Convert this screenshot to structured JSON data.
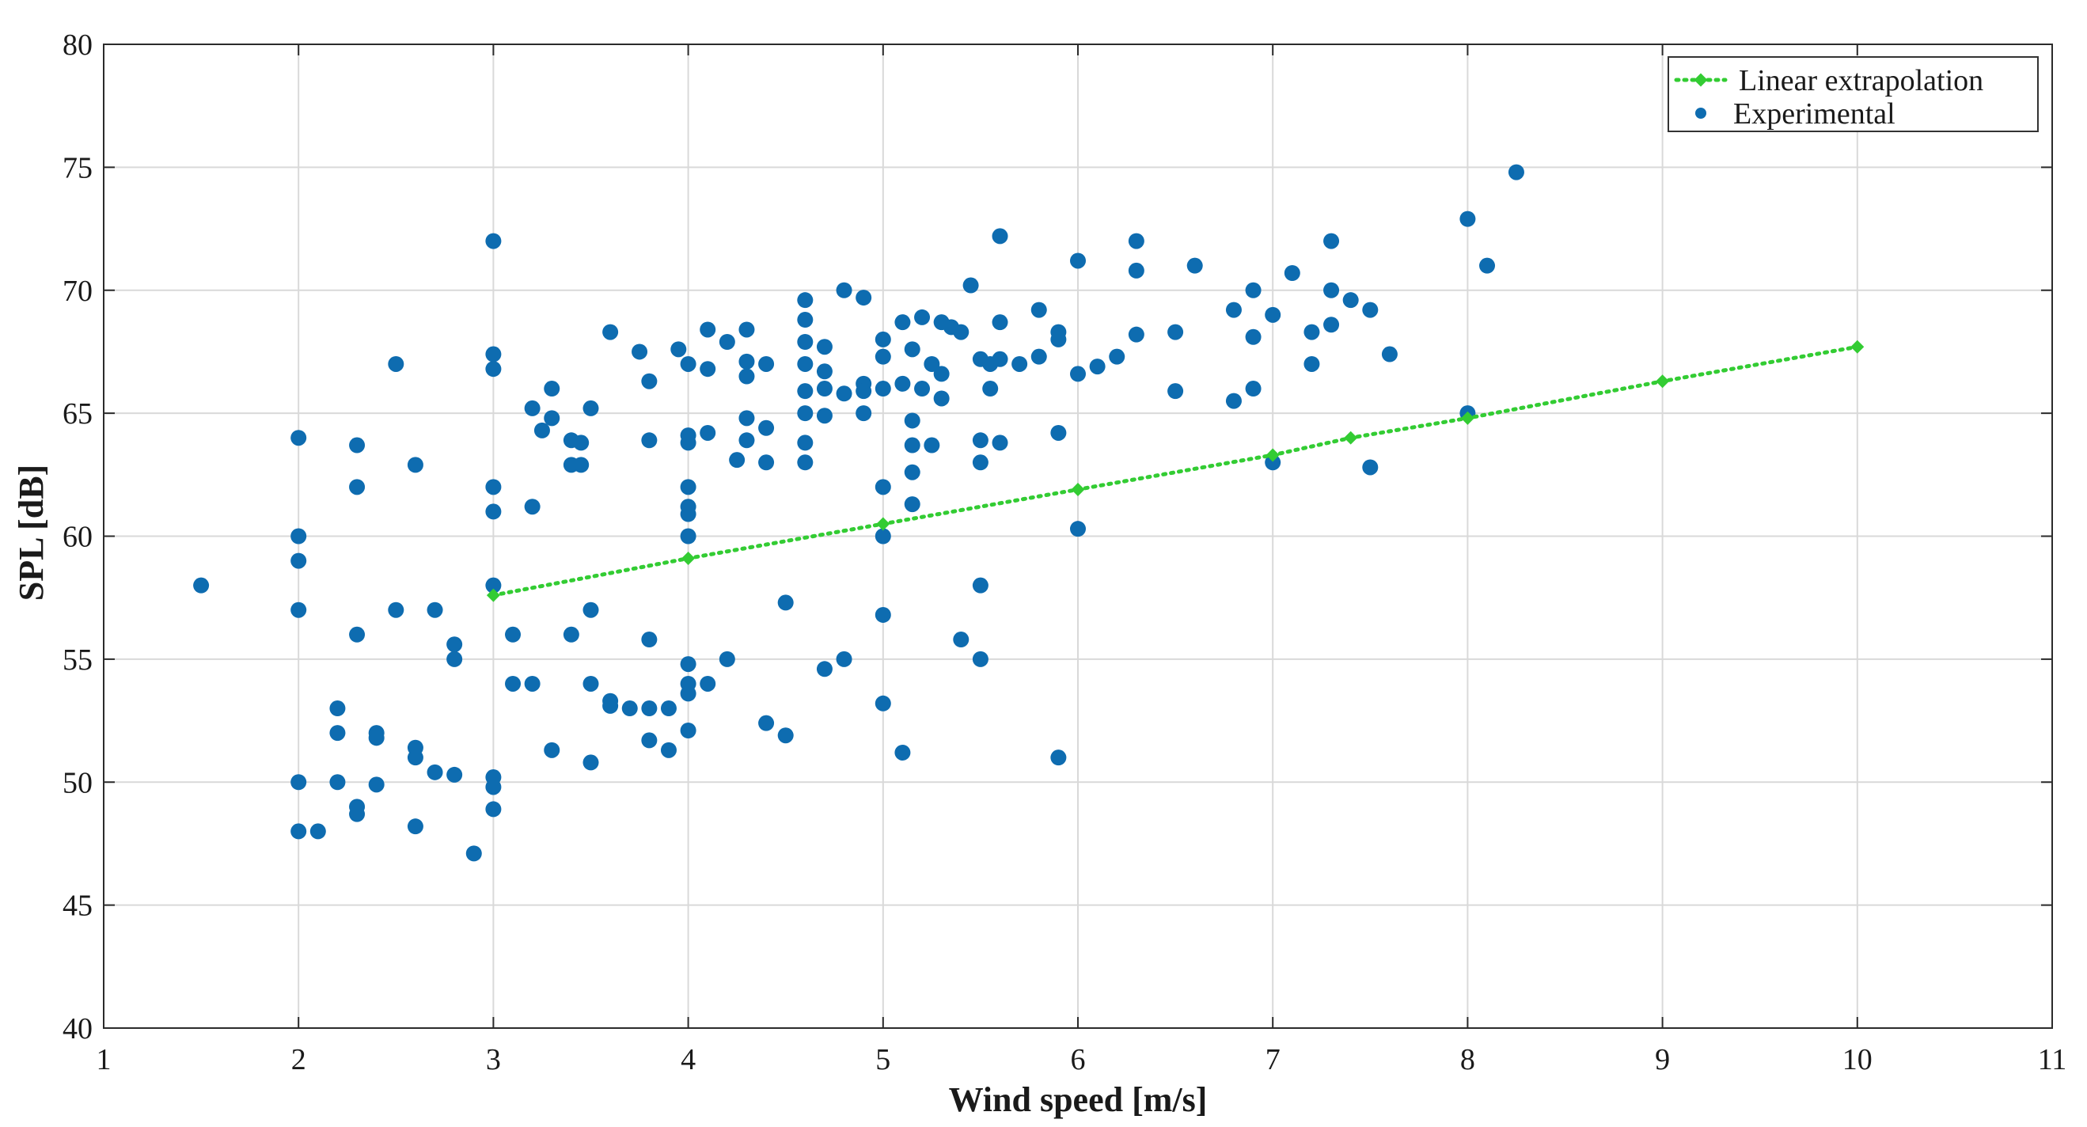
{
  "chart_data": {
    "type": "scatter",
    "title": "",
    "xlabel": "Wind speed [m/s]",
    "ylabel": "SPL [dB]",
    "xlim": [
      1,
      11
    ],
    "ylim": [
      40,
      80
    ],
    "xticks": [
      1,
      2,
      3,
      4,
      5,
      6,
      7,
      8,
      9,
      10,
      11
    ],
    "yticks": [
      40,
      45,
      50,
      55,
      60,
      65,
      70,
      75,
      80
    ],
    "grid": true,
    "legend_position": "top-right",
    "series": [
      {
        "name": "Linear extrapolation",
        "style": "dotted line with diamond markers",
        "color": "#33cc33",
        "points": [
          [
            3,
            57.6
          ],
          [
            4,
            59.1
          ],
          [
            5,
            60.5
          ],
          [
            6,
            61.9
          ],
          [
            7,
            63.3
          ],
          [
            7.4,
            64.0
          ],
          [
            8,
            64.8
          ],
          [
            9,
            66.3
          ],
          [
            10,
            67.7
          ]
        ]
      },
      {
        "name": "Experimental",
        "style": "filled circles",
        "color": "#0e6cb0",
        "points": [
          [
            1.5,
            58.0
          ],
          [
            2.0,
            64.0
          ],
          [
            2.0,
            60.0
          ],
          [
            2.0,
            59.0
          ],
          [
            2.0,
            57.0
          ],
          [
            2.0,
            50.0
          ],
          [
            2.0,
            48.0
          ],
          [
            2.1,
            48.0
          ],
          [
            2.2,
            53.0
          ],
          [
            2.2,
            52.0
          ],
          [
            2.2,
            50.0
          ],
          [
            2.3,
            63.7
          ],
          [
            2.3,
            62.0
          ],
          [
            2.3,
            56.0
          ],
          [
            2.3,
            49.0
          ],
          [
            2.3,
            48.7
          ],
          [
            2.4,
            52.0
          ],
          [
            2.4,
            51.8
          ],
          [
            2.4,
            49.9
          ],
          [
            2.5,
            67.0
          ],
          [
            2.5,
            57.0
          ],
          [
            2.6,
            62.9
          ],
          [
            2.6,
            51.4
          ],
          [
            2.6,
            51.0
          ],
          [
            2.6,
            48.2
          ],
          [
            2.7,
            57.0
          ],
          [
            2.7,
            50.4
          ],
          [
            2.8,
            55.6
          ],
          [
            2.8,
            55.0
          ],
          [
            2.8,
            50.3
          ],
          [
            2.9,
            47.1
          ],
          [
            3.0,
            72.0
          ],
          [
            3.0,
            67.4
          ],
          [
            3.0,
            66.8
          ],
          [
            3.0,
            62.0
          ],
          [
            3.0,
            61.0
          ],
          [
            3.0,
            58.0
          ],
          [
            3.0,
            50.2
          ],
          [
            3.0,
            49.8
          ],
          [
            3.0,
            48.9
          ],
          [
            3.1,
            56.0
          ],
          [
            3.1,
            54.0
          ],
          [
            3.2,
            65.2
          ],
          [
            3.2,
            61.2
          ],
          [
            3.2,
            54.0
          ],
          [
            3.25,
            64.3
          ],
          [
            3.3,
            66.0
          ],
          [
            3.3,
            64.8
          ],
          [
            3.3,
            51.3
          ],
          [
            3.4,
            63.9
          ],
          [
            3.4,
            62.9
          ],
          [
            3.4,
            56.0
          ],
          [
            3.45,
            63.8
          ],
          [
            3.45,
            62.9
          ],
          [
            3.5,
            65.2
          ],
          [
            3.5,
            57.0
          ],
          [
            3.5,
            54.0
          ],
          [
            3.5,
            50.8
          ],
          [
            3.6,
            68.3
          ],
          [
            3.6,
            53.3
          ],
          [
            3.6,
            53.1
          ],
          [
            3.7,
            53.0
          ],
          [
            3.75,
            67.5
          ],
          [
            3.8,
            66.3
          ],
          [
            3.8,
            63.9
          ],
          [
            3.8,
            55.8
          ],
          [
            3.8,
            53.0
          ],
          [
            3.8,
            51.7
          ],
          [
            3.9,
            53.0
          ],
          [
            3.9,
            51.3
          ],
          [
            3.95,
            67.6
          ],
          [
            4.0,
            67.0
          ],
          [
            4.0,
            64.1
          ],
          [
            4.0,
            63.8
          ],
          [
            4.0,
            62.0
          ],
          [
            4.0,
            61.2
          ],
          [
            4.0,
            60.9
          ],
          [
            4.0,
            60.0
          ],
          [
            4.0,
            54.8
          ],
          [
            4.0,
            54.0
          ],
          [
            4.0,
            53.6
          ],
          [
            4.0,
            52.1
          ],
          [
            4.1,
            68.4
          ],
          [
            4.1,
            66.8
          ],
          [
            4.1,
            64.2
          ],
          [
            4.1,
            54.0
          ],
          [
            4.2,
            67.9
          ],
          [
            4.2,
            55.0
          ],
          [
            4.25,
            63.1
          ],
          [
            4.3,
            68.4
          ],
          [
            4.3,
            67.1
          ],
          [
            4.3,
            66.5
          ],
          [
            4.3,
            64.8
          ],
          [
            4.3,
            63.9
          ],
          [
            4.4,
            67.0
          ],
          [
            4.4,
            64.4
          ],
          [
            4.4,
            63.0
          ],
          [
            4.4,
            52.4
          ],
          [
            4.5,
            57.3
          ],
          [
            4.5,
            51.9
          ],
          [
            4.6,
            69.6
          ],
          [
            4.6,
            68.8
          ],
          [
            4.6,
            67.9
          ],
          [
            4.6,
            67.0
          ],
          [
            4.6,
            65.9
          ],
          [
            4.6,
            65.0
          ],
          [
            4.6,
            63.8
          ],
          [
            4.6,
            63.0
          ],
          [
            4.7,
            67.7
          ],
          [
            4.7,
            66.7
          ],
          [
            4.7,
            66.0
          ],
          [
            4.7,
            64.9
          ],
          [
            4.7,
            54.6
          ],
          [
            4.8,
            70.0
          ],
          [
            4.8,
            65.8
          ],
          [
            4.8,
            55.0
          ],
          [
            4.9,
            69.7
          ],
          [
            4.9,
            66.2
          ],
          [
            4.9,
            65.9
          ],
          [
            4.9,
            65.0
          ],
          [
            5.0,
            68.0
          ],
          [
            5.0,
            67.3
          ],
          [
            5.0,
            66.0
          ],
          [
            5.0,
            62.0
          ],
          [
            5.0,
            60.0
          ],
          [
            5.0,
            56.8
          ],
          [
            5.0,
            53.2
          ],
          [
            5.1,
            68.7
          ],
          [
            5.1,
            66.2
          ],
          [
            5.1,
            51.2
          ],
          [
            5.15,
            67.6
          ],
          [
            5.15,
            64.7
          ],
          [
            5.15,
            63.7
          ],
          [
            5.15,
            62.6
          ],
          [
            5.15,
            61.3
          ],
          [
            5.2,
            68.9
          ],
          [
            5.2,
            66.0
          ],
          [
            5.25,
            67.0
          ],
          [
            5.25,
            63.7
          ],
          [
            5.3,
            68.7
          ],
          [
            5.3,
            66.6
          ],
          [
            5.3,
            65.6
          ],
          [
            5.35,
            68.5
          ],
          [
            5.4,
            68.3
          ],
          [
            5.4,
            55.8
          ],
          [
            5.45,
            70.2
          ],
          [
            5.5,
            67.2
          ],
          [
            5.5,
            63.9
          ],
          [
            5.5,
            63.0
          ],
          [
            5.5,
            58.0
          ],
          [
            5.5,
            55.0
          ],
          [
            5.55,
            67.0
          ],
          [
            5.55,
            66.0
          ],
          [
            5.6,
            72.2
          ],
          [
            5.6,
            68.7
          ],
          [
            5.6,
            67.2
          ],
          [
            5.6,
            63.8
          ],
          [
            5.7,
            67.0
          ],
          [
            5.8,
            69.2
          ],
          [
            5.8,
            67.3
          ],
          [
            5.9,
            68.3
          ],
          [
            5.9,
            68.0
          ],
          [
            5.9,
            64.2
          ],
          [
            5.9,
            51.0
          ],
          [
            6.0,
            71.2
          ],
          [
            6.0,
            66.6
          ],
          [
            6.0,
            60.3
          ],
          [
            6.1,
            66.9
          ],
          [
            6.2,
            67.3
          ],
          [
            6.3,
            72.0
          ],
          [
            6.3,
            70.8
          ],
          [
            6.3,
            68.2
          ],
          [
            6.5,
            68.3
          ],
          [
            6.5,
            65.9
          ],
          [
            6.6,
            71.0
          ],
          [
            6.8,
            69.2
          ],
          [
            6.8,
            65.5
          ],
          [
            6.9,
            70.0
          ],
          [
            6.9,
            68.1
          ],
          [
            6.9,
            66.0
          ],
          [
            7.0,
            69.0
          ],
          [
            7.0,
            63.0
          ],
          [
            7.1,
            70.7
          ],
          [
            7.2,
            68.3
          ],
          [
            7.2,
            67.0
          ],
          [
            7.3,
            72.0
          ],
          [
            7.3,
            70.0
          ],
          [
            7.3,
            68.6
          ],
          [
            7.4,
            69.6
          ],
          [
            7.5,
            69.2
          ],
          [
            7.5,
            62.8
          ],
          [
            7.6,
            67.4
          ],
          [
            8.0,
            72.9
          ],
          [
            8.0,
            65.0
          ],
          [
            8.1,
            71.0
          ],
          [
            8.25,
            74.8
          ]
        ]
      }
    ]
  }
}
